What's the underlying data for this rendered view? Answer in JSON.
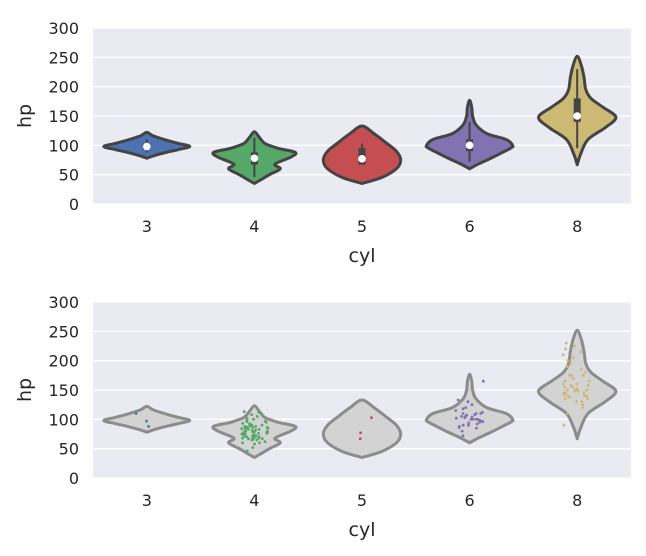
{
  "colors": {
    "panel_bg": "#eaeaf2",
    "grid": "#ffffff",
    "outline": "#444444",
    "gray_violin_fill": "#d3d3d3",
    "gray_violin_edge": "#8c8c8c",
    "palette": [
      "#4c72b0",
      "#55a868",
      "#c44e52",
      "#8172b2",
      "#ccb974"
    ]
  },
  "chart_data": [
    {
      "type": "violin",
      "title": "",
      "xlabel": "cyl",
      "ylabel": "hp",
      "ylim": [
        0,
        300
      ],
      "yticks": [
        0,
        50,
        100,
        150,
        200,
        250,
        300
      ],
      "grid": true,
      "categories": [
        "3",
        "4",
        "5",
        "6",
        "8"
      ],
      "violins": [
        {
          "category": "3",
          "ymin": 78,
          "ymax": 122,
          "median": 98,
          "q1": 93,
          "q3": 103,
          "wmin": 88,
          "wmax": 110,
          "shape": [
            [
              0,
              78
            ],
            [
              0.15,
              82
            ],
            [
              0.45,
              88
            ],
            [
              0.75,
              93
            ],
            [
              1.0,
              98
            ],
            [
              0.75,
              103
            ],
            [
              0.45,
              109
            ],
            [
              0.15,
              116
            ],
            [
              0,
              122
            ]
          ]
        },
        {
          "category": "4",
          "ymin": 35,
          "ymax": 123,
          "median": 78,
          "q1": 67,
          "q3": 88,
          "wmin": 46,
          "wmax": 113,
          "shape": [
            [
              0,
              35
            ],
            [
              0.12,
              40
            ],
            [
              0.35,
              50
            ],
            [
              0.6,
              60
            ],
            [
              0.48,
              68
            ],
            [
              0.85,
              80
            ],
            [
              0.95,
              88
            ],
            [
              0.55,
              95
            ],
            [
              0.25,
              103
            ],
            [
              0.12,
              113
            ],
            [
              0,
              123
            ]
          ]
        },
        {
          "category": "5",
          "ymin": 35,
          "ymax": 133,
          "median": 77,
          "q1": 67,
          "q3": 95,
          "wmin": 67,
          "wmax": 103,
          "shape": [
            [
              0,
              35
            ],
            [
              0.45,
              45
            ],
            [
              0.8,
              60
            ],
            [
              0.9,
              75
            ],
            [
              0.8,
              90
            ],
            [
              0.55,
              105
            ],
            [
              0.28,
              120
            ],
            [
              0,
              133
            ]
          ]
        },
        {
          "category": "6",
          "ymin": 60,
          "ymax": 177,
          "median": 100,
          "q1": 90,
          "q3": 110,
          "wmin": 72,
          "wmax": 140,
          "shape": [
            [
              0,
              60
            ],
            [
              0.2,
              68
            ],
            [
              0.55,
              80
            ],
            [
              0.95,
              95
            ],
            [
              1.0,
              100
            ],
            [
              0.85,
              110
            ],
            [
              0.4,
              120
            ],
            [
              0.15,
              135
            ],
            [
              0.07,
              150
            ],
            [
              0.05,
              165
            ],
            [
              0,
              177
            ]
          ]
        },
        {
          "category": "8",
          "ymin": 67,
          "ymax": 252,
          "median": 150,
          "q1": 140,
          "q3": 180,
          "wmin": 95,
          "wmax": 230,
          "shape": [
            [
              0,
              67
            ],
            [
              0.08,
              85
            ],
            [
              0.25,
              110
            ],
            [
              0.65,
              130
            ],
            [
              0.9,
              148
            ],
            [
              0.6,
              165
            ],
            [
              0.32,
              180
            ],
            [
              0.2,
              195
            ],
            [
              0.16,
              215
            ],
            [
              0.1,
              235
            ],
            [
              0,
              252
            ]
          ]
        }
      ],
      "style": "colored-violin-with-inner-box"
    },
    {
      "type": "violin",
      "title": "",
      "xlabel": "cyl",
      "ylabel": "hp",
      "ylim": [
        0,
        300
      ],
      "yticks": [
        0,
        50,
        100,
        150,
        200,
        250,
        300
      ],
      "grid": true,
      "categories": [
        "3",
        "4",
        "5",
        "6",
        "8"
      ],
      "violins": [
        {
          "category": "3",
          "ymin": 78,
          "ymax": 122,
          "shape": [
            [
              0,
              78
            ],
            [
              0.15,
              82
            ],
            [
              0.45,
              88
            ],
            [
              0.75,
              93
            ],
            [
              1.0,
              98
            ],
            [
              0.75,
              103
            ],
            [
              0.45,
              109
            ],
            [
              0.15,
              116
            ],
            [
              0,
              122
            ]
          ]
        },
        {
          "category": "4",
          "ymin": 35,
          "ymax": 123,
          "shape": [
            [
              0,
              35
            ],
            [
              0.12,
              40
            ],
            [
              0.35,
              50
            ],
            [
              0.6,
              60
            ],
            [
              0.48,
              68
            ],
            [
              0.85,
              80
            ],
            [
              0.95,
              88
            ],
            [
              0.55,
              95
            ],
            [
              0.25,
              103
            ],
            [
              0.12,
              113
            ],
            [
              0,
              123
            ]
          ]
        },
        {
          "category": "5",
          "ymin": 35,
          "ymax": 133,
          "shape": [
            [
              0,
              35
            ],
            [
              0.45,
              45
            ],
            [
              0.8,
              60
            ],
            [
              0.9,
              75
            ],
            [
              0.8,
              90
            ],
            [
              0.55,
              105
            ],
            [
              0.28,
              120
            ],
            [
              0,
              133
            ]
          ]
        },
        {
          "category": "6",
          "ymin": 60,
          "ymax": 177,
          "shape": [
            [
              0,
              60
            ],
            [
              0.2,
              68
            ],
            [
              0.55,
              80
            ],
            [
              0.95,
              95
            ],
            [
              1.0,
              100
            ],
            [
              0.85,
              110
            ],
            [
              0.4,
              120
            ],
            [
              0.15,
              135
            ],
            [
              0.07,
              150
            ],
            [
              0.05,
              165
            ],
            [
              0,
              177
            ]
          ]
        },
        {
          "category": "8",
          "ymin": 67,
          "ymax": 252,
          "shape": [
            [
              0,
              67
            ],
            [
              0.08,
              85
            ],
            [
              0.25,
              110
            ],
            [
              0.65,
              130
            ],
            [
              0.9,
              148
            ],
            [
              0.6,
              165
            ],
            [
              0.32,
              180
            ],
            [
              0.2,
              195
            ],
            [
              0.16,
              215
            ],
            [
              0.1,
              235
            ],
            [
              0,
              252
            ]
          ]
        }
      ],
      "points": [
        {
          "category": "3",
          "y": [
            97,
            88,
            110
          ]
        },
        {
          "category": "4",
          "y": [
            46,
            52,
            58,
            60,
            62,
            65,
            65,
            67,
            67,
            68,
            68,
            69,
            70,
            70,
            71,
            72,
            74,
            75,
            75,
            76,
            78,
            78,
            79,
            80,
            80,
            81,
            82,
            83,
            83,
            84,
            85,
            86,
            87,
            88,
            88,
            88,
            90,
            90,
            92,
            93,
            95,
            96,
            97,
            100,
            102,
            105,
            108,
            110,
            112,
            113,
            98,
            66,
            74,
            84,
            90,
            60,
            76,
            86,
            92,
            70,
            79,
            72
          ]
        },
        {
          "category": "5",
          "y": [
            103,
            77,
            67
          ]
        },
        {
          "category": "6",
          "y": [
            72,
            80,
            85,
            88,
            90,
            92,
            95,
            96,
            97,
            98,
            100,
            100,
            100,
            102,
            103,
            105,
            105,
            107,
            108,
            110,
            110,
            112,
            115,
            120,
            125,
            130,
            133,
            165,
            90,
            98,
            104,
            94,
            86,
            100,
            110,
            118
          ]
        },
        {
          "category": "8",
          "y": [
            90,
            110,
            120,
            125,
            130,
            135,
            138,
            140,
            140,
            142,
            145,
            145,
            148,
            150,
            150,
            150,
            152,
            155,
            158,
            160,
            165,
            170,
            175,
            175,
            180,
            190,
            200,
            210,
            215,
            220,
            225,
            230,
            130,
            148,
            160,
            140,
            150,
            145,
            155,
            165,
            175,
            185,
            195,
            205,
            135,
            158
          ]
        }
      ],
      "style": "gray-violin-with-strip-points"
    }
  ]
}
